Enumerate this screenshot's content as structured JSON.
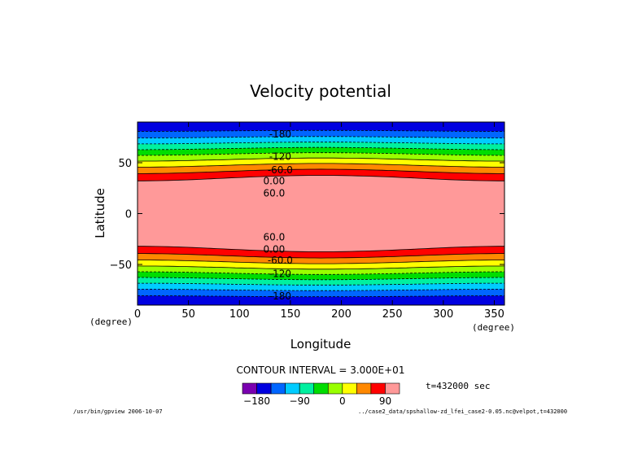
{
  "chart_data": {
    "type": "heatmap",
    "subtype": "filled-contour",
    "title": "Velocity potential",
    "xlabel": "Longitude",
    "ylabel": "Latitude",
    "x_unit": "(degree)",
    "y_unit": "(degree)",
    "xlim": [
      0,
      360
    ],
    "ylim": [
      -90,
      90
    ],
    "x_ticks": [
      0,
      50,
      100,
      150,
      200,
      250,
      300,
      350
    ],
    "y_ticks": [
      50,
      0,
      -50
    ],
    "y_tick_labels": [
      "50",
      "0",
      "−50"
    ],
    "contour_interval_text": "CONTOUR INTERVAL = 3.000E+01",
    "time_text": "t=432000 sec",
    "levels": [
      -180,
      -150,
      -120,
      -90,
      -60,
      -30,
      0,
      30,
      60,
      90
    ],
    "colors": [
      "#7a00b0",
      "#0000e0",
      "#0066ff",
      "#00ccff",
      "#00f0a0",
      "#00dd00",
      "#99ff00",
      "#ffff00",
      "#ff8800",
      "#ff0000",
      "#ff9999"
    ],
    "colorbar_labels": [
      {
        "value": -180,
        "text": "−180"
      },
      {
        "value": -90,
        "text": "−90"
      },
      {
        "value": 0,
        "text": "0"
      },
      {
        "value": 90,
        "text": "90"
      }
    ],
    "contour_labels": [
      {
        "text": "-180",
        "lon": 140,
        "lat": 78
      },
      {
        "text": "-120",
        "lon": 140,
        "lat": 56
      },
      {
        "text": "-60.0",
        "lon": 140,
        "lat": 43
      },
      {
        "text": "0.00",
        "lon": 134,
        "lat": 32
      },
      {
        "text": "60.0",
        "lon": 134,
        "lat": 20
      },
      {
        "text": "60.0",
        "lon": 134,
        "lat": -23
      },
      {
        "text": "0.00",
        "lon": 134,
        "lat": -35
      },
      {
        "text": "-60.0",
        "lon": 140,
        "lat": -46
      },
      {
        "text": "-120",
        "lon": 140,
        "lat": -59
      },
      {
        "text": "-180",
        "lon": 140,
        "lat": -81
      }
    ]
  },
  "footer": {
    "left": "/usr/bin/gpview  2006-10-07",
    "right": "../case2_data/spshallow-zd_lfei_case2-0.05.nc@velpot,t=432000"
  }
}
